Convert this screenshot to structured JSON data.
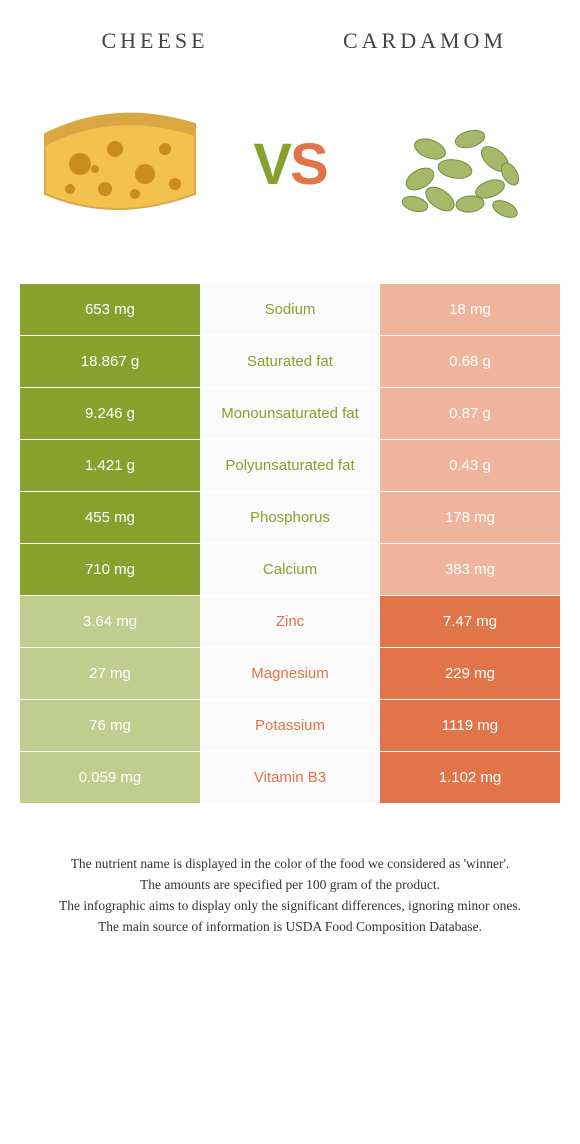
{
  "header": {
    "left_title": "CHEESE",
    "right_title": "CARDAMOM"
  },
  "vs": {
    "v_letter": "V",
    "s_letter": "S"
  },
  "colors": {
    "green_strong": "#89a02c",
    "green_faded": "#c1cd8f",
    "orange_strong": "#e2744a",
    "orange_faded": "#f0b49c",
    "cheese_body": "#f2c14e",
    "cheese_rind": "#d9a845",
    "cheese_hole": "#c98c1e",
    "cardamom_pod": "#a8b86b",
    "cardamom_shadow": "#7a8a3d"
  },
  "comparison": {
    "rows": [
      {
        "nutrient": "Sodium",
        "left": "653 mg",
        "right": "18 mg",
        "winner": "left"
      },
      {
        "nutrient": "Saturated fat",
        "left": "18.867 g",
        "right": "0.68 g",
        "winner": "left"
      },
      {
        "nutrient": "Monounsaturated fat",
        "left": "9.246 g",
        "right": "0.87 g",
        "winner": "left"
      },
      {
        "nutrient": "Polyunsaturated fat",
        "left": "1.421 g",
        "right": "0.43 g",
        "winner": "left"
      },
      {
        "nutrient": "Phosphorus",
        "left": "455 mg",
        "right": "178 mg",
        "winner": "left"
      },
      {
        "nutrient": "Calcium",
        "left": "710 mg",
        "right": "383 mg",
        "winner": "left"
      },
      {
        "nutrient": "Zinc",
        "left": "3.64 mg",
        "right": "7.47 mg",
        "winner": "right"
      },
      {
        "nutrient": "Magnesium",
        "left": "27 mg",
        "right": "229 mg",
        "winner": "right"
      },
      {
        "nutrient": "Potassium",
        "left": "76 mg",
        "right": "1119 mg",
        "winner": "right"
      },
      {
        "nutrient": "Vitamin B3",
        "left": "0.059 mg",
        "right": "1.102 mg",
        "winner": "right"
      }
    ]
  },
  "footnotes": [
    "The nutrient name is displayed in the color of the food we considered as 'winner'.",
    "The amounts are specified per 100 gram of the product.",
    "The infographic aims to display only the significant differences, ignoring minor ones.",
    "The main source of information is USDA Food Composition Database."
  ]
}
